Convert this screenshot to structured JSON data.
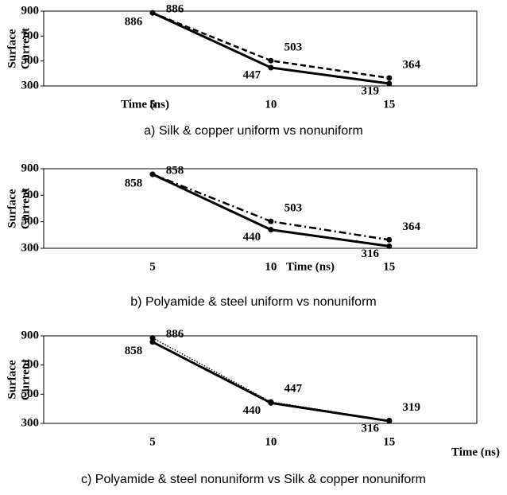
{
  "chart_data": [
    {
      "type": "line",
      "ylabel": [
        "Surface",
        "Current"
      ],
      "xlabel": "Time (ns)",
      "caption": "a) Silk & copper uniform vs nonuniform",
      "x": [
        5,
        10,
        15
      ],
      "xlim": [
        0.4,
        18.7
      ],
      "xticks": [
        5,
        10,
        15
      ],
      "ylim": [
        300,
        900
      ],
      "yticks": [
        300,
        500,
        700,
        900
      ],
      "series": [
        {
          "color": "#000000",
          "dash": "solid",
          "values": [
            886,
            447,
            319
          ]
        },
        {
          "color": "#000000",
          "dash": "dashed",
          "values": [
            886,
            503,
            364
          ]
        }
      ]
    },
    {
      "type": "line",
      "ylabel": [
        "Surface",
        "Current"
      ],
      "xlabel": "Time (ns)",
      "caption": "b) Polyamide & steel uniform vs nonuniform",
      "x": [
        5,
        10,
        15
      ],
      "xlim": [
        0.4,
        18.7
      ],
      "xticks": [
        5,
        10,
        15
      ],
      "ylim": [
        300,
        900
      ],
      "yticks": [
        300,
        500,
        700,
        900
      ],
      "series": [
        {
          "color": "#000000",
          "dash": "solid",
          "values": [
            858,
            440,
            316
          ]
        },
        {
          "color": "#000000",
          "dash": "dashdot",
          "values": [
            858,
            503,
            364
          ]
        }
      ]
    },
    {
      "type": "line",
      "ylabel": [
        "Surface",
        "Current"
      ],
      "xlabel": "Time (ns)",
      "caption": "c) Polyamide & steel nonuniform vs Silk & copper nonuniform",
      "x": [
        5,
        10,
        15
      ],
      "xlim": [
        0.4,
        18.7
      ],
      "xticks": [
        5,
        10,
        15
      ],
      "ylim": [
        300,
        900
      ],
      "yticks": [
        300,
        500,
        700,
        900
      ],
      "series": [
        {
          "color": "#000000",
          "dash": "solid",
          "values": [
            858,
            440,
            316
          ]
        },
        {
          "color": "#000000",
          "dash": "dotted",
          "values": [
            886,
            447,
            319
          ]
        }
      ]
    }
  ]
}
